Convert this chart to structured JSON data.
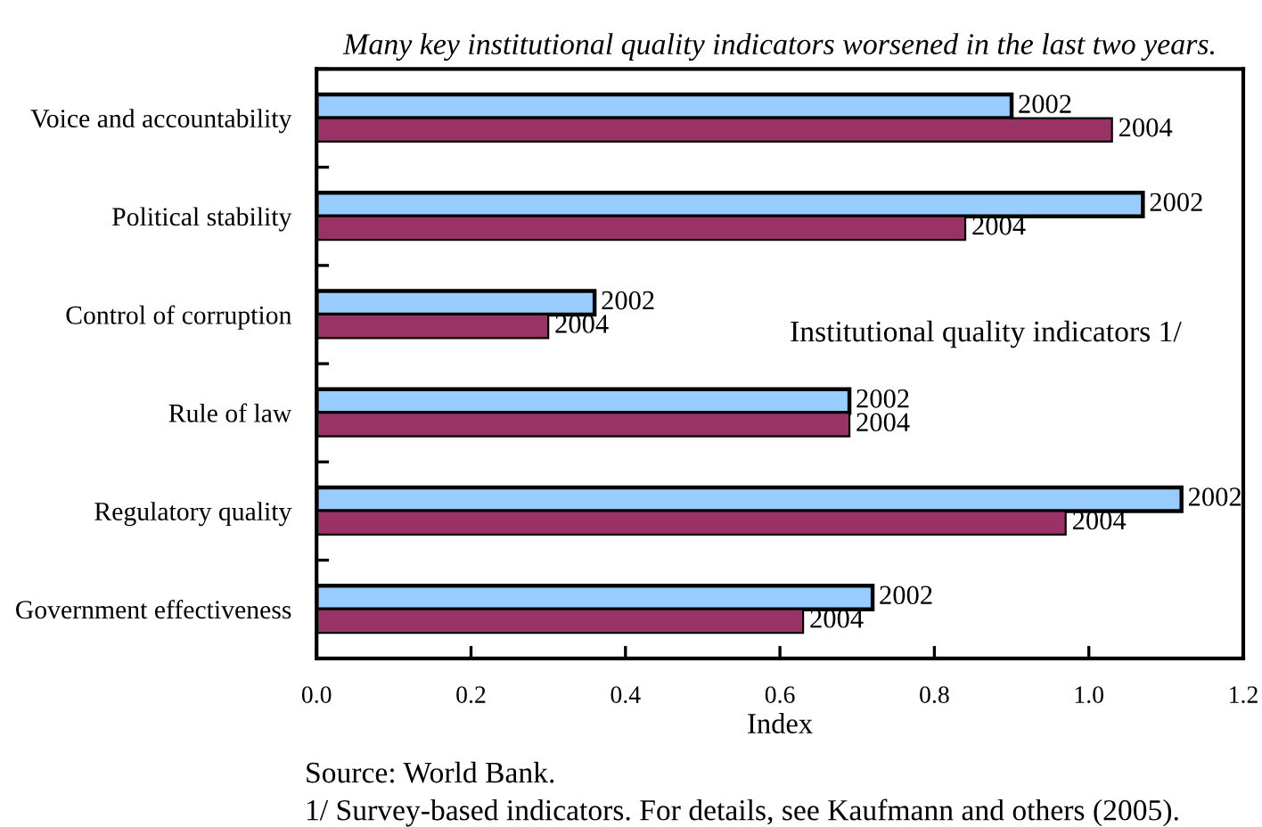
{
  "chart_data": {
    "type": "bar",
    "orientation": "horizontal",
    "title": "Many key institutional quality indicators worsened in the last two years.",
    "xlabel": "Index",
    "categories": [
      "Voice and accountability",
      "Political stability",
      "Control of corruption",
      "Rule of law",
      "Regulatory quality",
      "Government effectiveness"
    ],
    "series": [
      {
        "name": "2002",
        "color": "#99ccff",
        "values": [
          0.9,
          1.07,
          0.36,
          0.69,
          1.12,
          0.72
        ]
      },
      {
        "name": "2004",
        "color": "#993366",
        "values": [
          1.03,
          0.84,
          0.3,
          0.69,
          0.97,
          0.63
        ]
      }
    ],
    "xlim": [
      0,
      1.2
    ],
    "xticks": [
      {
        "value": 0,
        "label": "0.0"
      },
      0.2,
      0.4,
      0.6,
      0.8,
      {
        "value": 1,
        "label": "1.0"
      },
      1.2
    ],
    "annotations": [
      "Institutional quality indicators 1/",
      "Source: World Bank.",
      "1/ Survey-based indicators. For details, see Kaufmann and others (2005)."
    ]
  }
}
